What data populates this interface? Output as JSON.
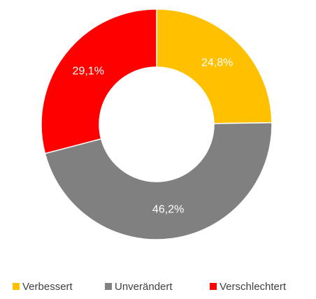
{
  "chart_data": {
    "type": "donut",
    "categories": [
      "Verbessert",
      "Unverändert",
      "Verschlechtert"
    ],
    "values": [
      24.8,
      46.2,
      29.1
    ],
    "value_labels": [
      "24,8%",
      "46,2%",
      "29,1%"
    ],
    "colors": [
      "#ffc000",
      "#808080",
      "#ff0000"
    ]
  }
}
